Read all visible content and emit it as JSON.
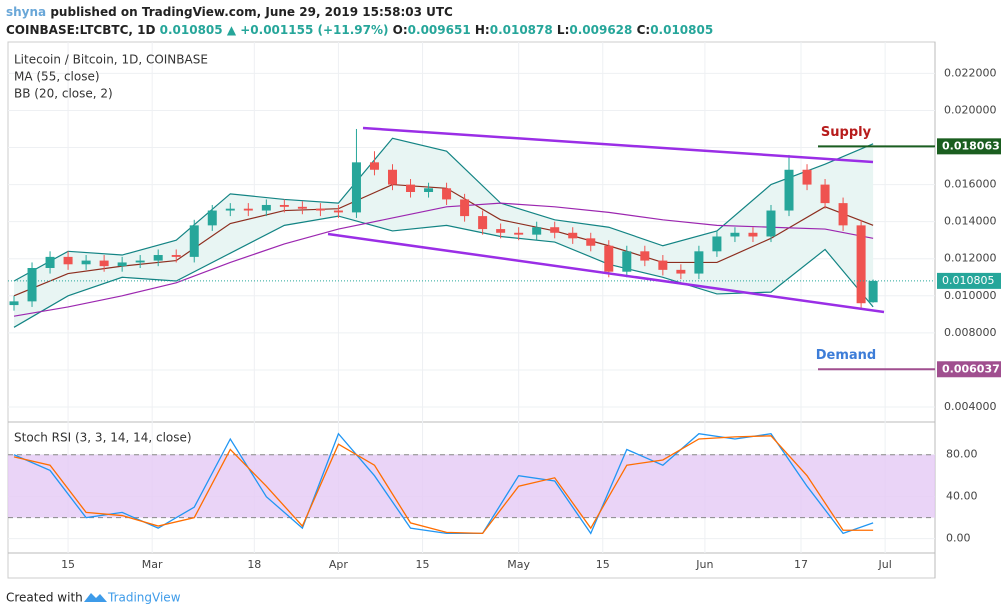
{
  "header": {
    "publisher": "shyna",
    "published": "published on TradingView.com, June 29, 2019 15:58:03 UTC",
    "symbol": "COINBASE:LTCBTC, 1D",
    "last": "0.010805",
    "change": "▲ +0.001155 (+11.97%)",
    "ohlc": [
      {
        "label": "O:",
        "value": "0.009651"
      },
      {
        "label": "H:",
        "value": "0.010878"
      },
      {
        "label": "L:",
        "value": "0.009628"
      },
      {
        "label": "C:",
        "value": "0.010805"
      }
    ]
  },
  "footer": {
    "created": "Created with",
    "brand": "TradingView"
  },
  "chart_data": [
    {
      "type": "candlestick",
      "title": "Litecoin / Bitcoin, 1D, COINBASE",
      "up_color": "#26a69a",
      "down_color": "#ef5350",
      "x": [
        37,
        40,
        43,
        46,
        49,
        52,
        55,
        58,
        61,
        64,
        67,
        70,
        73,
        76,
        79,
        82,
        85,
        88,
        91,
        94,
        97,
        100,
        103,
        106,
        109,
        112,
        115,
        118,
        121,
        124,
        127,
        130,
        133,
        136,
        139,
        142,
        145,
        148,
        151,
        154,
        157,
        160,
        163,
        166,
        169,
        172,
        175,
        178,
        180
      ],
      "open": [
        0.0095,
        0.0097,
        0.0115,
        0.0121,
        0.0117,
        0.0119,
        0.0116,
        0.0118,
        0.0119,
        0.0122,
        0.0121,
        0.0138,
        0.0146,
        0.0147,
        0.0146,
        0.0149,
        0.0148,
        0.0147,
        0.0146,
        0.0145,
        0.0172,
        0.0168,
        0.016,
        0.0156,
        0.0158,
        0.0152,
        0.0143,
        0.0136,
        0.0134,
        0.0133,
        0.0137,
        0.0134,
        0.0131,
        0.0127,
        0.0113,
        0.0124,
        0.0119,
        0.0114,
        0.0112,
        0.0124,
        0.0132,
        0.0134,
        0.0132,
        0.0146,
        0.0168,
        0.016,
        0.015,
        0.0138,
        0.009651
      ],
      "high": [
        0.01,
        0.0118,
        0.0124,
        0.0124,
        0.0122,
        0.0122,
        0.0121,
        0.0122,
        0.0125,
        0.0125,
        0.0141,
        0.0149,
        0.015,
        0.015,
        0.0152,
        0.0152,
        0.0151,
        0.015,
        0.0149,
        0.019,
        0.0178,
        0.0171,
        0.0163,
        0.0161,
        0.0161,
        0.0155,
        0.0146,
        0.0139,
        0.0137,
        0.014,
        0.014,
        0.0137,
        0.0134,
        0.013,
        0.0127,
        0.0127,
        0.0122,
        0.0117,
        0.0127,
        0.0135,
        0.0137,
        0.0137,
        0.0149,
        0.0176,
        0.0171,
        0.0163,
        0.0153,
        0.0141,
        0.010878
      ],
      "low": [
        0.0092,
        0.0094,
        0.0112,
        0.0114,
        0.0114,
        0.0113,
        0.0113,
        0.0115,
        0.0116,
        0.0118,
        0.0118,
        0.0135,
        0.0143,
        0.0143,
        0.0143,
        0.0145,
        0.0144,
        0.0143,
        0.0142,
        0.0142,
        0.0165,
        0.0157,
        0.0153,
        0.0153,
        0.0149,
        0.014,
        0.0133,
        0.0131,
        0.013,
        0.013,
        0.0131,
        0.0128,
        0.0124,
        0.011,
        0.011,
        0.0116,
        0.0111,
        0.0109,
        0.0109,
        0.0121,
        0.0129,
        0.0129,
        0.0129,
        0.0143,
        0.0157,
        0.0147,
        0.0135,
        0.0093,
        0.009628
      ],
      "close": [
        0.0097,
        0.0115,
        0.0121,
        0.0117,
        0.0119,
        0.0116,
        0.0118,
        0.0119,
        0.0122,
        0.0121,
        0.0138,
        0.0146,
        0.0147,
        0.0146,
        0.0149,
        0.0148,
        0.0147,
        0.0146,
        0.0145,
        0.0172,
        0.0168,
        0.016,
        0.0156,
        0.0158,
        0.0152,
        0.0143,
        0.0136,
        0.0134,
        0.0133,
        0.0137,
        0.0134,
        0.0131,
        0.0127,
        0.0113,
        0.0124,
        0.0119,
        0.0114,
        0.0112,
        0.0124,
        0.0132,
        0.0134,
        0.0132,
        0.0146,
        0.0168,
        0.016,
        0.015,
        0.0138,
        0.0096,
        0.010805
      ],
      "ma": {
        "name": "MA (55, close)",
        "color": "#9c27b0",
        "x": [
          37,
          46,
          55,
          64,
          73,
          82,
          91,
          100,
          109,
          118,
          127,
          136,
          145,
          154,
          163,
          172,
          180
        ],
        "values": [
          0.0089,
          0.0094,
          0.01,
          0.0107,
          0.0118,
          0.0128,
          0.0136,
          0.0142,
          0.0148,
          0.015,
          0.0148,
          0.0145,
          0.0141,
          0.0138,
          0.0137,
          0.0136,
          0.0131
        ]
      },
      "bb": {
        "name": "BB (20, close, 2)",
        "basis_color": "#8d2e1f",
        "band_color": "#138484",
        "fill": "#e8f5f3",
        "x": [
          37,
          46,
          55,
          64,
          73,
          82,
          91,
          100,
          109,
          118,
          127,
          136,
          145,
          154,
          163,
          172,
          180
        ],
        "basis": [
          0.01,
          0.0112,
          0.0116,
          0.0119,
          0.0139,
          0.0146,
          0.0147,
          0.016,
          0.0158,
          0.0141,
          0.0135,
          0.0127,
          0.0118,
          0.0118,
          0.0131,
          0.0148,
          0.0138
        ],
        "upper": [
          0.0108,
          0.0124,
          0.0122,
          0.013,
          0.0155,
          0.0152,
          0.015,
          0.0185,
          0.0178,
          0.015,
          0.0141,
          0.0137,
          0.0127,
          0.0135,
          0.016,
          0.0171,
          0.0182
        ],
        "lower": [
          0.0083,
          0.01,
          0.011,
          0.0108,
          0.0123,
          0.0138,
          0.0143,
          0.0135,
          0.0138,
          0.0132,
          0.0129,
          0.0117,
          0.011,
          0.0101,
          0.0102,
          0.0125,
          0.0094
        ]
      },
      "levels": [
        {
          "name": "Supply",
          "value": 0.018063,
          "text_color": "#b71c1c",
          "color": "#1b5e20"
        },
        {
          "name": "Demand",
          "value": 0.006037,
          "text_color": "#3d7dd8",
          "color": "#a04f8f"
        }
      ],
      "last_color": "#26a69a",
      "xlim": [
        36,
        190.3
      ],
      "xticks": [
        {
          "value": 46,
          "label": "15"
        },
        {
          "value": 60,
          "label": "Mar"
        },
        {
          "value": 77,
          "label": "18"
        },
        {
          "value": 91,
          "label": "Apr"
        },
        {
          "value": 105,
          "label": "15"
        },
        {
          "value": 121,
          "label": "May"
        },
        {
          "value": 135,
          "label": "15"
        },
        {
          "value": 152,
          "label": "Jun"
        },
        {
          "value": 168,
          "label": "17"
        },
        {
          "value": 182,
          "label": "Jul"
        }
      ],
      "ylim": [
        0.0033,
        0.0238
      ],
      "yticks": [
        {
          "value": 0.004,
          "label": "0.004000"
        },
        {
          "value": 0.006,
          "label": "0.006000"
        },
        {
          "value": 0.008,
          "label": "0.008000"
        },
        {
          "value": 0.01,
          "label": "0.010000"
        },
        {
          "value": 0.012,
          "label": "0.012000"
        },
        {
          "value": 0.014,
          "label": "0.014000"
        },
        {
          "value": 0.016,
          "label": "0.016000"
        },
        {
          "value": 0.018,
          "label": "0.018000"
        },
        {
          "value": 0.02,
          "label": "0.020000"
        },
        {
          "value": 0.022,
          "label": "0.022000"
        }
      ],
      "grid": true
    },
    {
      "type": "line",
      "title": "Stoch RSI (3, 3, 14, 14, close)",
      "x": [
        37,
        43,
        49,
        55,
        61,
        67,
        73,
        79,
        85,
        91,
        97,
        103,
        109,
        115,
        121,
        127,
        133,
        139,
        145,
        151,
        157,
        163,
        169,
        175,
        180
      ],
      "series": [
        {
          "color": "#2196f3",
          "values": [
            80,
            65,
            20,
            25,
            10,
            30,
            95,
            40,
            10,
            100,
            60,
            10,
            5,
            5,
            60,
            55,
            5,
            85,
            70,
            100,
            95,
            100,
            50,
            5,
            15
          ]
        },
        {
          "color": "#ff6d00",
          "values": [
            78,
            70,
            25,
            22,
            12,
            20,
            85,
            50,
            12,
            90,
            70,
            15,
            6,
            5,
            50,
            58,
            10,
            70,
            75,
            95,
            97,
            98,
            60,
            8,
            8
          ]
        }
      ],
      "band": [
        20,
        80
      ],
      "band_color": "#e5c9f5",
      "ylim": [
        -13.7,
        111.2
      ],
      "yticks": [
        {
          "value": 0,
          "label": "0.00"
        },
        {
          "value": 40,
          "label": "40.00"
        },
        {
          "value": 80,
          "label": "80.00"
        }
      ]
    }
  ]
}
